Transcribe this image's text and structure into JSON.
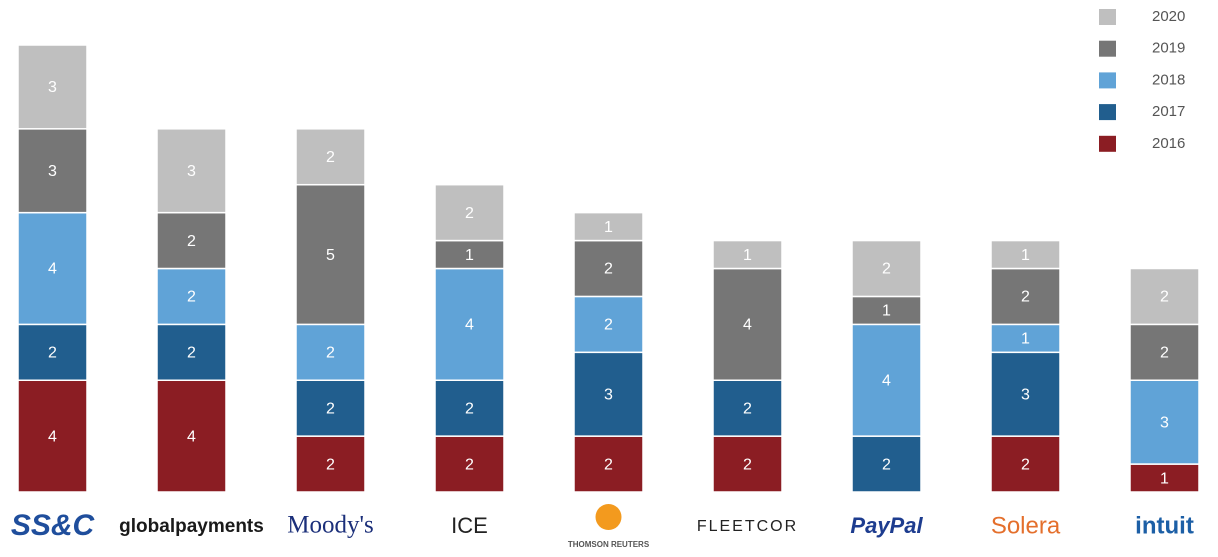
{
  "chart_data": {
    "type": "stacked_bar",
    "categories": [
      "SS&C",
      "globalpayments",
      "Moody's",
      "ICE",
      "THOMSON REUTERS",
      "FLEETCOR",
      "PayPal",
      "Solera",
      "intuit"
    ],
    "series": [
      {
        "name": "2016",
        "color": "#8b1d23",
        "values": [
          4,
          4,
          2,
          2,
          2,
          2,
          null,
          2,
          1
        ]
      },
      {
        "name": "2017",
        "color": "#215e8e",
        "values": [
          2,
          2,
          2,
          2,
          3,
          2,
          2,
          3,
          null
        ]
      },
      {
        "name": "2018",
        "color": "#60a3d7",
        "values": [
          4,
          2,
          2,
          4,
          2,
          null,
          4,
          1,
          3
        ]
      },
      {
        "name": "2019",
        "color": "#767676",
        "values": [
          3,
          2,
          5,
          1,
          2,
          4,
          1,
          2,
          2
        ]
      },
      {
        "name": "2020",
        "color": "#bfbfbf",
        "values": [
          3,
          3,
          2,
          2,
          1,
          1,
          2,
          1,
          2
        ]
      }
    ],
    "legend": "top-right"
  }
}
